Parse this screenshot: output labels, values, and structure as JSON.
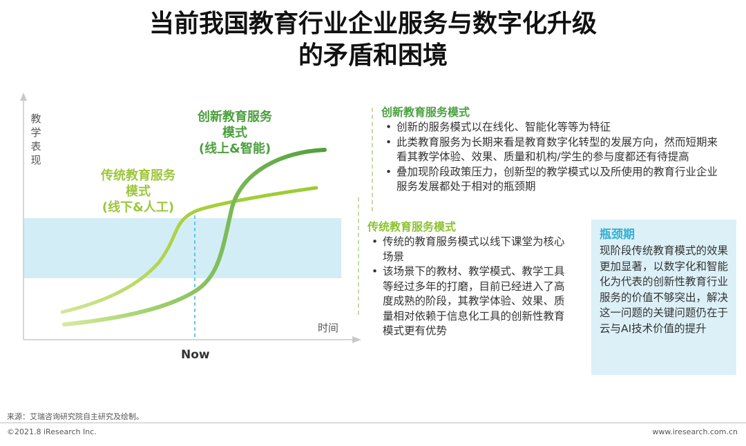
{
  "title": {
    "line1": "当前我国教育行业企业服务与数字化升级",
    "line2": "的矛盾和困境"
  },
  "diagram": {
    "y_axis_label": "教学表现",
    "x_axis_label": "时间",
    "marker_label": "Now",
    "innovative_curve_label": [
      "创新教育服务",
      "模式",
      "(线上&智能)"
    ],
    "traditional_curve_label": [
      "传统教育服务",
      "模式",
      "(线下&人工)"
    ]
  },
  "innovative": {
    "heading": "创新教育服务模式",
    "bullets": [
      "创新的服务模式以在线化、智能化等等为特征",
      "此类教育服务为长期来看是教育数字化转型的发展方向，然而短期来看其教学体验、效果、质量和机构/学生的参与度都还有待提高",
      "叠加现阶段政策压力，创新型的教学模式以及所使用的教育行业企业服务发展都处于相对的瓶颈期"
    ]
  },
  "traditional": {
    "heading": "传统教育服务模式",
    "bullets": [
      "传统的教育服务模式以线下课堂为核心场景",
      "该场景下的教材、教学模式、教学工具等经过多年的打磨，目前已经进入了高度成熟的阶段，其教学体验、效果、质量相对依赖于信息化工具的创新性教育模式更有优势"
    ]
  },
  "bottleneck": {
    "title": "瓶颈期",
    "body": "现阶段传统教育模式的效果更加显著，以数字化和智能化为代表的创新性教育行业服务的价值不够突出，解决这一问题的关键问题仍在于云与AI技术价值的提升"
  },
  "footer": {
    "source": "来源：艾瑞咨询研究院自主研究及绘制。",
    "copyright": "©2021.8 iResearch Inc.",
    "website": "www.iresearch.com.cn"
  },
  "colors": {
    "innovative": "#5aab46",
    "traditional": "#a9cf3a",
    "band": "#d3edf6",
    "now_line": "#38b6e0",
    "bottleneck_title": "#35b0d5"
  }
}
